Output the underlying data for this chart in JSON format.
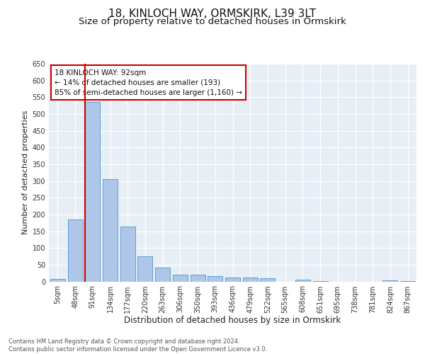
{
  "title": "18, KINLOCH WAY, ORMSKIRK, L39 3LT",
  "subtitle": "Size of property relative to detached houses in Ormskirk",
  "xlabel": "Distribution of detached houses by size in Ormskirk",
  "ylabel": "Number of detached properties",
  "categories": [
    "5sqm",
    "48sqm",
    "91sqm",
    "134sqm",
    "177sqm",
    "220sqm",
    "263sqm",
    "306sqm",
    "350sqm",
    "393sqm",
    "436sqm",
    "479sqm",
    "522sqm",
    "565sqm",
    "608sqm",
    "651sqm",
    "695sqm",
    "738sqm",
    "781sqm",
    "824sqm",
    "867sqm"
  ],
  "values": [
    8,
    185,
    535,
    305,
    163,
    75,
    42,
    20,
    20,
    15,
    11,
    11,
    10,
    0,
    5,
    2,
    0,
    0,
    0,
    4,
    1
  ],
  "bar_color": "#aec6e8",
  "bar_edge_color": "#5a9fd4",
  "vline_x_index": 2,
  "vline_color": "#cc0000",
  "annotation_box_text": "18 KINLOCH WAY: 92sqm\n← 14% of detached houses are smaller (193)\n85% of semi-detached houses are larger (1,160) →",
  "annotation_box_color": "#cc0000",
  "ylim": [
    0,
    650
  ],
  "yticks": [
    0,
    50,
    100,
    150,
    200,
    250,
    300,
    350,
    400,
    450,
    500,
    550,
    600,
    650
  ],
  "background_color": "#e8eef5",
  "footer_text": "Contains HM Land Registry data © Crown copyright and database right 2024.\nContains public sector information licensed under the Open Government Licence v3.0.",
  "title_fontsize": 11,
  "subtitle_fontsize": 9.5,
  "xlabel_fontsize": 8.5,
  "ylabel_fontsize": 8,
  "tick_fontsize": 7,
  "annotation_fontsize": 7.5,
  "footer_fontsize": 6
}
